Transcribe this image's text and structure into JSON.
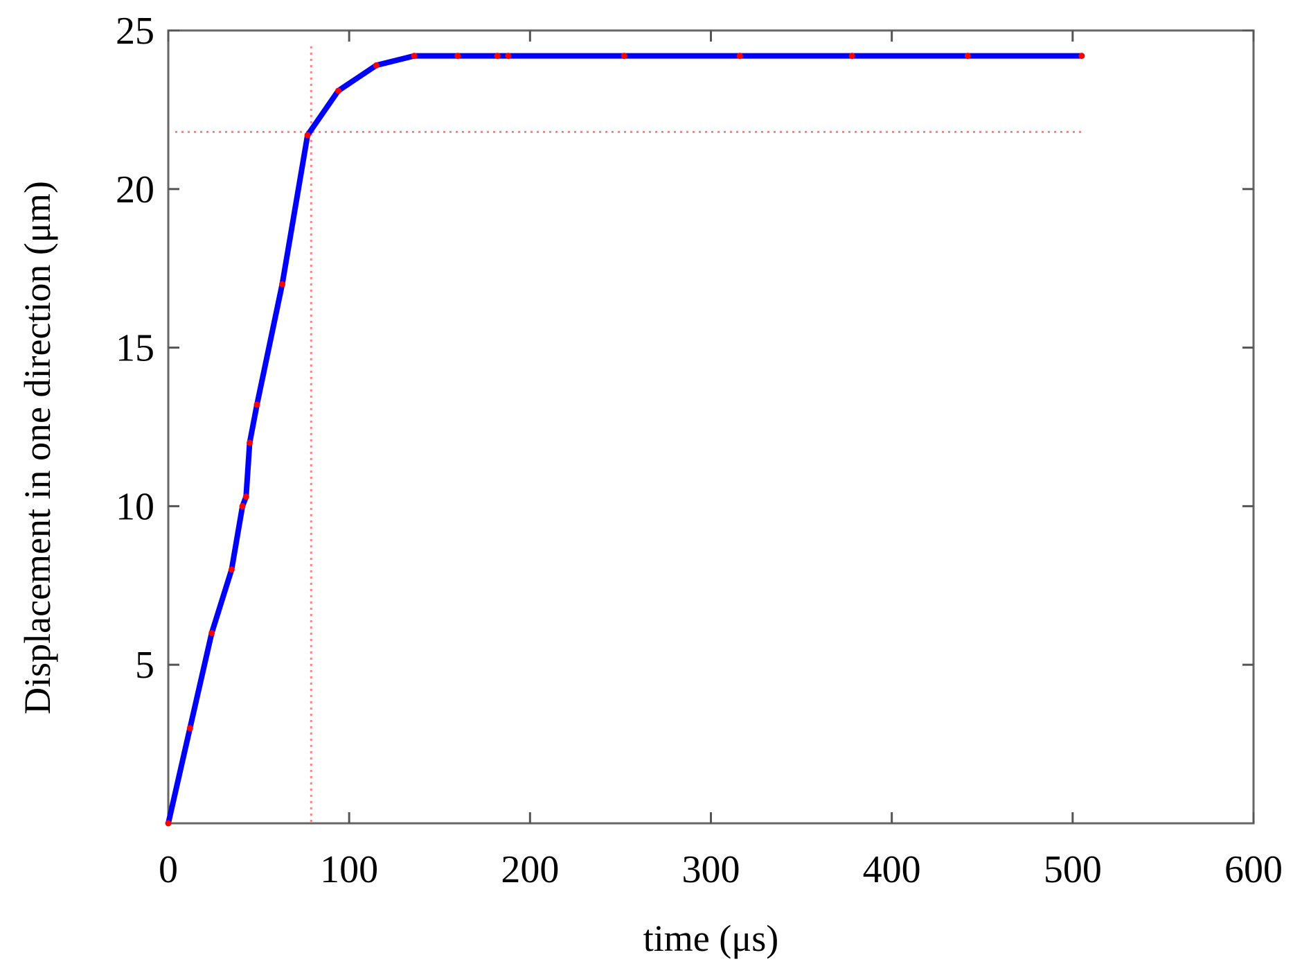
{
  "chart_data": {
    "type": "line",
    "title": "",
    "xlabel": "time (μs)",
    "ylabel": "Displacement in one direction (μm)",
    "xlim": [
      0,
      600
    ],
    "ylim": [
      0,
      25
    ],
    "xticks": [
      0,
      100,
      200,
      300,
      400,
      500,
      600
    ],
    "yticks": [
      5,
      10,
      15,
      20,
      25
    ],
    "grid": false,
    "series": [
      {
        "color": "#0000ff",
        "marker_color": "#ff0000",
        "x": [
          0,
          12,
          24,
          35,
          41,
          43,
          45,
          49,
          63,
          77,
          94,
          115,
          136,
          160,
          182,
          188,
          252,
          316,
          378,
          442,
          505
        ],
        "y": [
          0,
          3,
          6,
          8,
          10,
          10.3,
          12.0,
          13.2,
          17,
          21.7,
          23.1,
          23.9,
          24.2,
          24.2,
          24.2,
          24.2,
          24.2,
          24.2,
          24.2,
          24.2,
          24.2
        ]
      }
    ],
    "reference_lines": [
      {
        "orientation": "vertical",
        "x": 79,
        "color": "#ff8080",
        "style": "dotted"
      },
      {
        "orientation": "horizontal",
        "y": 21.8,
        "color": "#ff8080",
        "style": "dotted"
      }
    ]
  }
}
